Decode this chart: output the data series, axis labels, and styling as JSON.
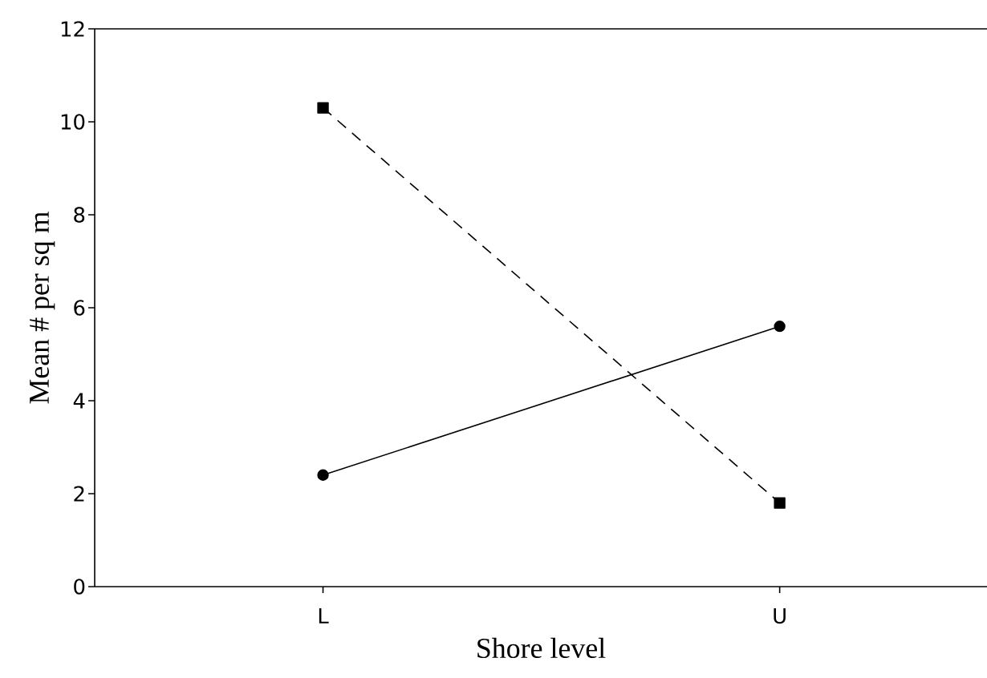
{
  "chart_data": {
    "type": "line",
    "xlabel": "Shore level",
    "ylabel": "Mean # per sq m",
    "categories": [
      "L",
      "U"
    ],
    "series": [
      {
        "color": "#000000",
        "values": [
          10.3,
          1.8
        ],
        "marker": "square",
        "line_style": "dashed"
      },
      {
        "color": "#000000",
        "values": [
          2.4,
          5.6
        ],
        "marker": "circle",
        "line_style": "solid"
      }
    ],
    "ylim": [
      0,
      12
    ],
    "yticks": [
      0,
      2,
      4,
      6,
      8,
      10,
      12
    ]
  }
}
